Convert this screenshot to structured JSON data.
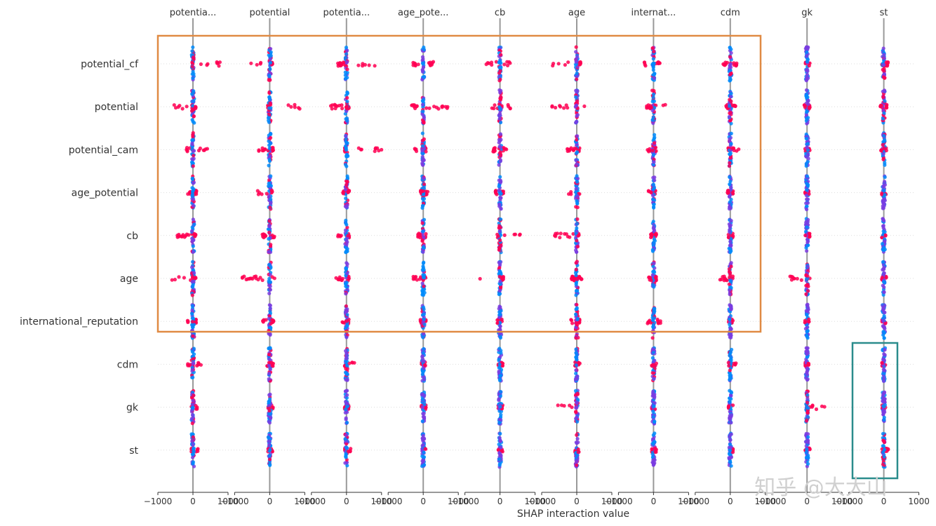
{
  "chart_data": {
    "type": "scatter",
    "subtype": "shap-interaction-summary",
    "xlabel": "SHAP interaction value",
    "xlim": [
      -1000,
      1000
    ],
    "xticks": [
      "−1000",
      "0",
      "1000"
    ],
    "features": [
      "potential_cf",
      "potential",
      "potential_cam",
      "age_potential",
      "cb",
      "age",
      "international_reputation",
      "cdm",
      "gk",
      "st"
    ],
    "column_labels": [
      "potentia...",
      "potential",
      "potentia...",
      "age_pote...",
      "cb",
      "age",
      "internat...",
      "cdm",
      "gk",
      "st"
    ],
    "colors": {
      "high": "#ff0052",
      "low": "#008bfb",
      "mid": "#7a3ce0",
      "zero_line": "#999999",
      "highlight_main": "#e08a43",
      "highlight_st": "#2a8c8c"
    },
    "point_spread": [
      [
        [
          -50,
          850,
          "h"
        ],
        [
          -900,
          80,
          "h"
        ],
        [
          -250,
          850,
          "h"
        ],
        [
          -300,
          300,
          "m"
        ],
        [
          -500,
          300,
          "h"
        ],
        [
          -700,
          150,
          "h"
        ],
        [
          -300,
          200,
          "h"
        ],
        [
          -200,
          200,
          "h"
        ],
        [
          -50,
          80,
          "m"
        ],
        [
          -50,
          120,
          "h"
        ]
      ],
      [
        [
          -600,
          80,
          "h"
        ],
        [
          -60,
          1000,
          "h"
        ],
        [
          -450,
          80,
          "h"
        ],
        [
          -350,
          700,
          "h"
        ],
        [
          -250,
          300,
          "h"
        ],
        [
          -800,
          400,
          "h"
        ],
        [
          -200,
          500,
          "h"
        ],
        [
          -150,
          150,
          "h"
        ],
        [
          -80,
          80,
          "m"
        ],
        [
          -100,
          120,
          "h"
        ]
      ],
      [
        [
          -200,
          450,
          "h"
        ],
        [
          -350,
          100,
          "h"
        ],
        [
          -50,
          1000,
          "h"
        ],
        [
          -250,
          80,
          "h"
        ],
        [
          -200,
          200,
          "h"
        ],
        [
          -300,
          80,
          "h"
        ],
        [
          -200,
          80,
          "h"
        ],
        [
          -60,
          250,
          "h"
        ],
        [
          -60,
          80,
          "m"
        ],
        [
          -80,
          100,
          "h"
        ]
      ],
      [
        [
          -150,
          100,
          "h"
        ],
        [
          -350,
          80,
          "h"
        ],
        [
          -100,
          80,
          "h"
        ],
        [
          -80,
          150,
          "h"
        ],
        [
          -150,
          100,
          "m"
        ],
        [
          -300,
          80,
          "h"
        ],
        [
          -150,
          80,
          "h"
        ],
        [
          -80,
          80,
          "m"
        ],
        [
          -60,
          60,
          "m"
        ],
        [
          -60,
          60,
          "m"
        ]
      ],
      [
        [
          -450,
          80,
          "h"
        ],
        [
          -250,
          150,
          "h"
        ],
        [
          -250,
          80,
          "h"
        ],
        [
          -150,
          80,
          "h"
        ],
        [
          -80,
          700,
          "h"
        ],
        [
          -650,
          80,
          "h"
        ],
        [
          -80,
          80,
          "m"
        ],
        [
          -60,
          80,
          "m"
        ],
        [
          -60,
          80,
          "m"
        ],
        [
          -60,
          60,
          "m"
        ]
      ],
      [
        [
          -650,
          80,
          "h"
        ],
        [
          -800,
          150,
          "h"
        ],
        [
          -300,
          80,
          "h"
        ],
        [
          -300,
          80,
          "h"
        ],
        [
          -650,
          100,
          "h"
        ],
        [
          -150,
          150,
          "h"
        ],
        [
          -150,
          80,
          "h"
        ],
        [
          -300,
          80,
          "h"
        ],
        [
          -550,
          80,
          "h"
        ],
        [
          -60,
          80,
          "m"
        ]
      ],
      [
        [
          -300,
          100,
          "h"
        ],
        [
          -200,
          120,
          "h"
        ],
        [
          -180,
          80,
          "h"
        ],
        [
          -80,
          80,
          "h"
        ],
        [
          -80,
          80,
          "m"
        ],
        [
          -200,
          80,
          "h"
        ],
        [
          -200,
          200,
          "h"
        ],
        [
          -50,
          80,
          "m"
        ],
        [
          -60,
          60,
          "m"
        ],
        [
          -50,
          50,
          "m"
        ]
      ],
      [
        [
          -150,
          250,
          "h"
        ],
        [
          -80,
          100,
          "h"
        ],
        [
          -50,
          250,
          "h"
        ],
        [
          -50,
          80,
          "m"
        ],
        [
          -50,
          80,
          "m"
        ],
        [
          -50,
          100,
          "h"
        ],
        [
          -50,
          80,
          "h"
        ],
        [
          -50,
          200,
          "h"
        ],
        [
          -60,
          60,
          "m"
        ],
        [
          -50,
          50,
          "m"
        ]
      ],
      [
        [
          -50,
          120,
          "h"
        ],
        [
          -50,
          100,
          "h"
        ],
        [
          -50,
          80,
          "m"
        ],
        [
          -50,
          80,
          "m"
        ],
        [
          -50,
          80,
          "m"
        ],
        [
          -550,
          80,
          "h"
        ],
        [
          -50,
          80,
          "m"
        ],
        [
          -50,
          80,
          "m"
        ],
        [
          -50,
          500,
          "h"
        ],
        [
          -50,
          60,
          "m"
        ]
      ],
      [
        [
          -50,
          150,
          "h"
        ],
        [
          -50,
          80,
          "h"
        ],
        [
          -50,
          120,
          "h"
        ],
        [
          -50,
          80,
          "m"
        ],
        [
          -50,
          80,
          "m"
        ],
        [
          -50,
          60,
          "h"
        ],
        [
          -50,
          80,
          "m"
        ],
        [
          -50,
          80,
          "m"
        ],
        [
          -50,
          80,
          "m"
        ],
        [
          -50,
          150,
          "h"
        ]
      ]
    ]
  },
  "watermark": "知乎 @大大山"
}
